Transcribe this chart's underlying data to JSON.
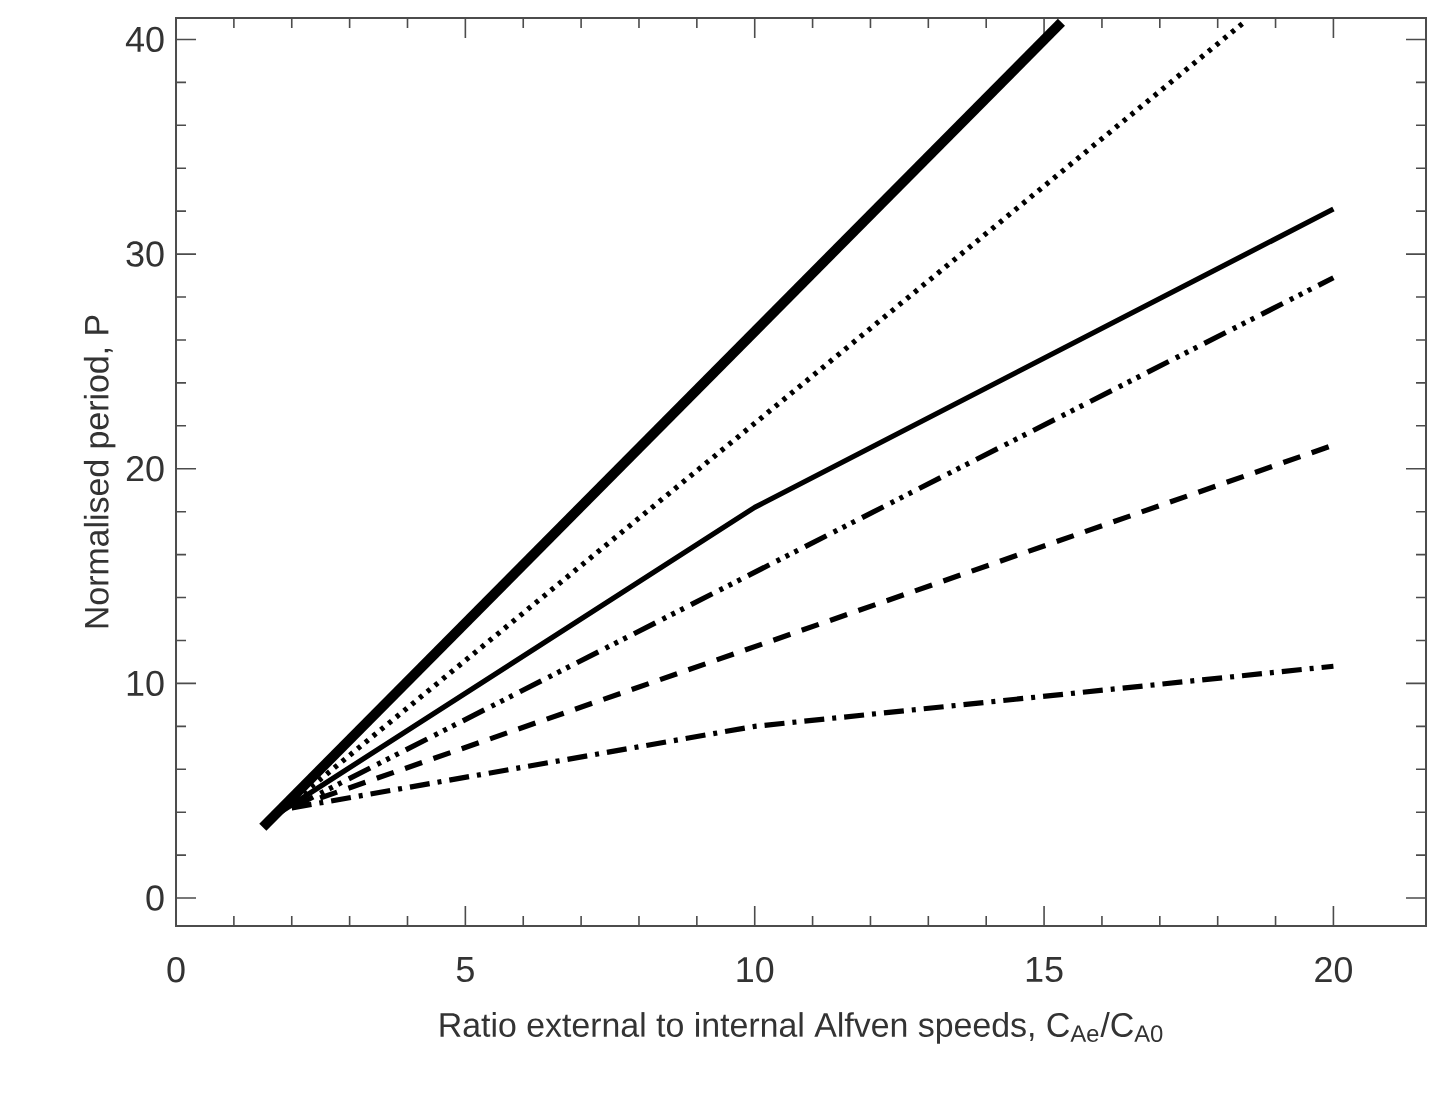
{
  "chart_data": {
    "type": "line",
    "xlabel": "Ratio external to internal Alfven speeds, C$_{Ae}$/C$_{A0}$",
    "ylabel": "Normalised period, P",
    "xlim": [
      0,
      21.6
    ],
    "ylim": [
      -1.3,
      41
    ],
    "xticks": [
      0,
      5,
      10,
      15,
      20
    ],
    "yticks": [
      0,
      10,
      20,
      30,
      40
    ],
    "grid": false,
    "marker": "none",
    "series": [
      {
        "color": "#000000",
        "line_style": "solid",
        "x": [
          1.5,
          15.3
        ],
        "values": [
          3.3,
          40.8
        ]
      },
      {
        "color": "#000000",
        "line_style": "dotted",
        "x": [
          1.8,
          18.5
        ],
        "values": [
          4.0,
          40.9
        ]
      },
      {
        "color": "#000000",
        "line_style": "solid",
        "x": [
          1.8,
          10,
          20
        ],
        "values": [
          4.0,
          18.2,
          32.1
        ]
      },
      {
        "color": "#000000",
        "line_style": "dashdotdotted",
        "x": [
          2.0,
          20
        ],
        "values": [
          4.2,
          28.9
        ]
      },
      {
        "color": "#000000",
        "line_style": "dashed",
        "x": [
          2.0,
          20
        ],
        "values": [
          4.2,
          21.1
        ]
      },
      {
        "color": "#000000",
        "line_style": "dashdotted",
        "x": [
          2.0,
          10,
          20
        ],
        "values": [
          4.2,
          8.0,
          10.8
        ]
      }
    ]
  }
}
